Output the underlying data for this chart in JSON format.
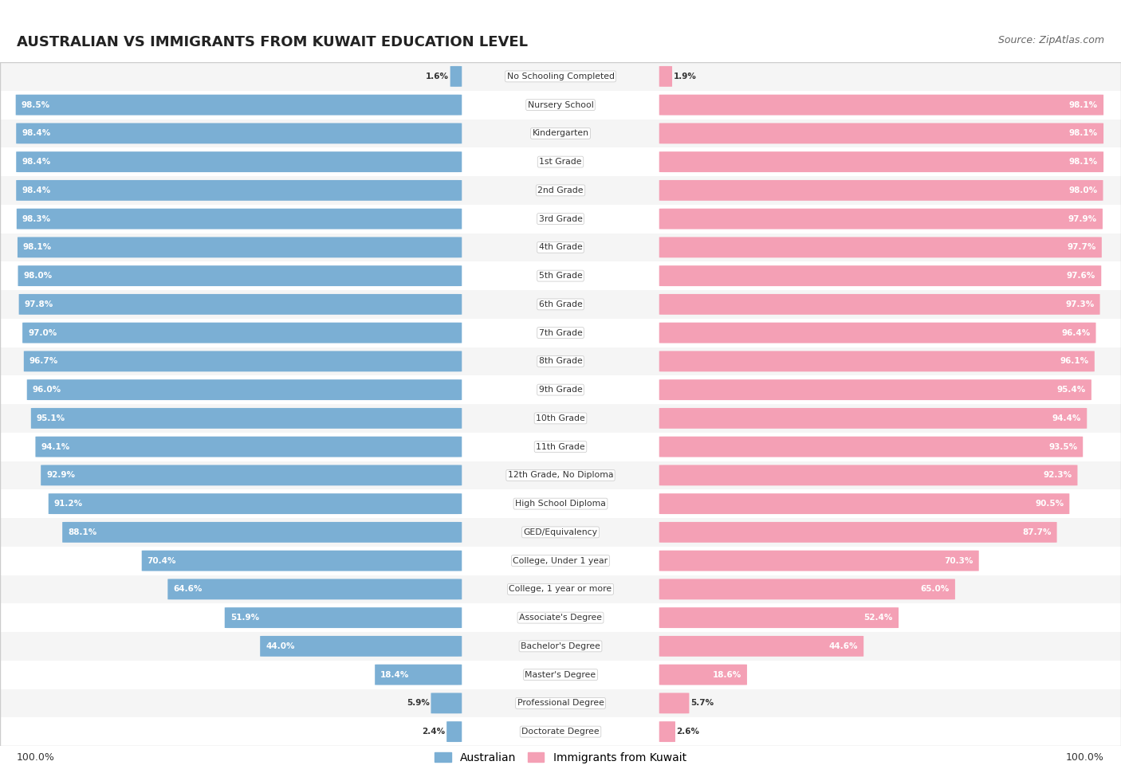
{
  "title": "AUSTRALIAN VS IMMIGRANTS FROM KUWAIT EDUCATION LEVEL",
  "source": "Source: ZipAtlas.com",
  "categories": [
    "No Schooling Completed",
    "Nursery School",
    "Kindergarten",
    "1st Grade",
    "2nd Grade",
    "3rd Grade",
    "4th Grade",
    "5th Grade",
    "6th Grade",
    "7th Grade",
    "8th Grade",
    "9th Grade",
    "10th Grade",
    "11th Grade",
    "12th Grade, No Diploma",
    "High School Diploma",
    "GED/Equivalency",
    "College, Under 1 year",
    "College, 1 year or more",
    "Associate's Degree",
    "Bachelor's Degree",
    "Master's Degree",
    "Professional Degree",
    "Doctorate Degree"
  ],
  "australian": [
    1.6,
    98.5,
    98.4,
    98.4,
    98.4,
    98.3,
    98.1,
    98.0,
    97.8,
    97.0,
    96.7,
    96.0,
    95.1,
    94.1,
    92.9,
    91.2,
    88.1,
    70.4,
    64.6,
    51.9,
    44.0,
    18.4,
    5.9,
    2.4
  ],
  "kuwait": [
    1.9,
    98.1,
    98.1,
    98.1,
    98.0,
    97.9,
    97.7,
    97.6,
    97.3,
    96.4,
    96.1,
    95.4,
    94.4,
    93.5,
    92.3,
    90.5,
    87.7,
    70.3,
    65.0,
    52.4,
    44.6,
    18.6,
    5.7,
    2.6
  ],
  "australian_color": "#7bafd4",
  "kuwait_color": "#f4a0b5",
  "row_bg_even": "#f5f5f5",
  "row_bg_odd": "#ffffff",
  "label_color": "#333333",
  "value_color": "#333333",
  "title_color": "#222222",
  "legend_australian": "Australian",
  "legend_kuwait": "Immigrants from Kuwait",
  "bottom_left_label": "100.0%",
  "bottom_right_label": "100.0%"
}
